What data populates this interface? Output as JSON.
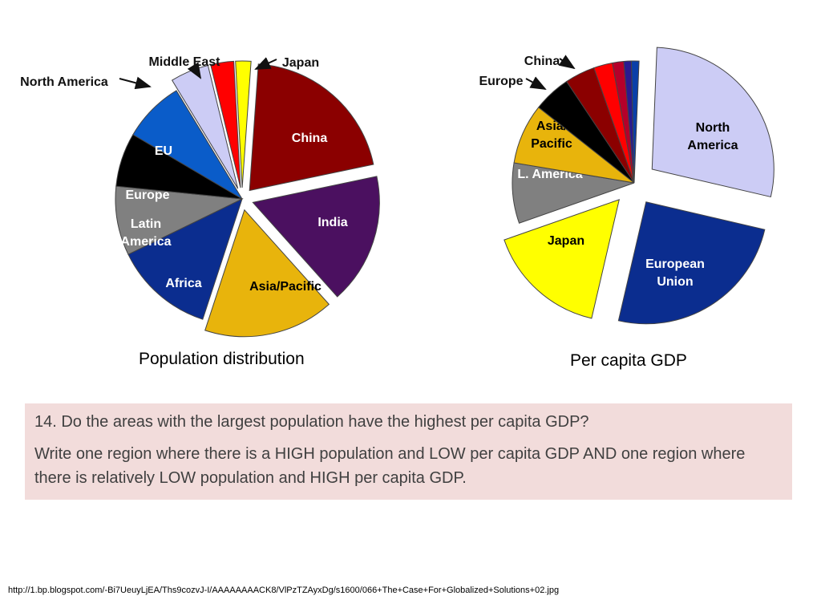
{
  "chart_data": [
    {
      "type": "pie",
      "title": "Population distribution",
      "slices": [
        {
          "label": "China",
          "value": 21,
          "color": "#8b0000",
          "label_color": "#ffffff",
          "exploded": true
        },
        {
          "label": "India",
          "value": 17,
          "color": "#4b1060",
          "label_color": "#ffffff",
          "exploded": true
        },
        {
          "label": "Asia/Pacific",
          "value": 17,
          "color": "#e8b40c",
          "label_color": "#000000",
          "exploded": true
        },
        {
          "label": "Africa",
          "value": 13,
          "color": "#0b2d8f",
          "label_color": "#ffffff",
          "exploded": false
        },
        {
          "label": "Latin America",
          "value": 9,
          "color": "#808080",
          "label_color": "#ffffff",
          "exploded": false
        },
        {
          "label": "Europe",
          "value": 7,
          "color": "#000000",
          "label_color": "#ffffff",
          "exploded": false
        },
        {
          "label": "EU",
          "value": 8,
          "color": "#0a5cc9",
          "label_color": "#ffffff",
          "exploded": false
        },
        {
          "label": "North America",
          "value": 5,
          "color": "#ccccf5",
          "label_color": "#000000",
          "exploded": true,
          "callout": true
        },
        {
          "label": "Middle East",
          "value": 3,
          "color": "#ff0000",
          "label_color": "#000000",
          "exploded": true,
          "callout": true
        },
        {
          "label": "Japan",
          "value": 2,
          "color": "#ffff00",
          "label_color": "#000000",
          "exploded": true,
          "callout": true
        }
      ]
    },
    {
      "type": "pie",
      "title": "Per capita GDP",
      "slices": [
        {
          "label": "North America",
          "value": 28,
          "color": "#ccccf5",
          "label_color": "#000000",
          "exploded": true
        },
        {
          "label": "European Union",
          "value": 25,
          "color": "#0b2d8f",
          "label_color": "#ffffff",
          "exploded": true
        },
        {
          "label": "Japan",
          "value": 16,
          "color": "#ffff00",
          "label_color": "#000000",
          "exploded": true
        },
        {
          "label": "L. America",
          "value": 8,
          "color": "#808080",
          "label_color": "#ffffff",
          "exploded": false
        },
        {
          "label": "Asia/ Pacific",
          "value": 8,
          "color": "#e8b40c",
          "label_color": "#000000",
          "exploded": false
        },
        {
          "label": "Europe",
          "value": 5,
          "color": "#000000",
          "label_color": "#ffffff",
          "exploded": false,
          "callout": true
        },
        {
          "label": "China",
          "value": 4,
          "color": "#8b0000",
          "label_color": "#ffffff",
          "exploded": false,
          "callout": true
        },
        {
          "label": "",
          "value": 2.5,
          "color": "#ff0000",
          "exploded": false
        },
        {
          "label": "",
          "value": 1.5,
          "color": "#b5002a",
          "exploded": false
        },
        {
          "label": "",
          "value": 1,
          "color": "#2a1a8f",
          "exploded": false
        },
        {
          "label": "",
          "value": 1,
          "color": "#0a3fa8",
          "exploded": false
        }
      ]
    }
  ],
  "captions": {
    "population": "Population distribution",
    "gdp": "Per capita GDP"
  },
  "question": {
    "line1": "14. Do the areas with the largest population have the highest per capita GDP?",
    "line2": "Write one region where there is a HIGH population and LOW per capita GDP AND one region where there is relatively LOW population and HIGH per capita GDP."
  },
  "source": "http://1.bp.blogspot.com/-Bi7UeuyLjEA/Ths9cozvJ-I/AAAAAAAACK8/VlPzTZAyxDg/s1600/066+The+Case+For+Globalized+Solutions+02.jpg"
}
